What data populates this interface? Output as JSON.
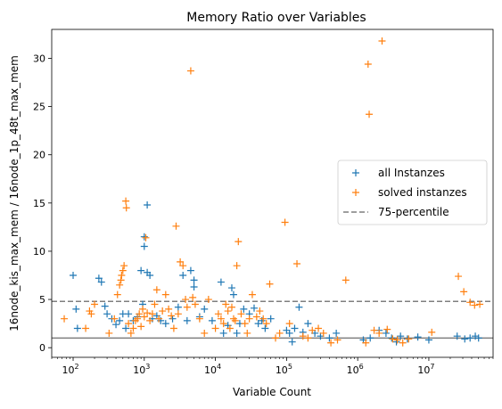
{
  "chart_data": {
    "type": "scatter",
    "title": "Memory Ratio over Variables",
    "xlabel": "Variable Count",
    "ylabel": "16node_kis_max_mem / 16node_1p_48t_max_mem",
    "x_scale": "log",
    "xlim": [
      50,
      80000000
    ],
    "ylim": [
      -1,
      33
    ],
    "x_ticks": [
      {
        "value": 100,
        "base": "10",
        "exp": "2"
      },
      {
        "value": 1000,
        "base": "10",
        "exp": "3"
      },
      {
        "value": 10000,
        "base": "10",
        "exp": "4"
      },
      {
        "value": 100000,
        "base": "10",
        "exp": "5"
      },
      {
        "value": 1000000,
        "base": "10",
        "exp": "6"
      },
      {
        "value": 10000000,
        "base": "10",
        "exp": "7"
      }
    ],
    "y_ticks": [
      0,
      5,
      10,
      15,
      20,
      25,
      30
    ],
    "legend": {
      "position": "center-right"
    },
    "reference_lines": [
      {
        "name": "75-percentile",
        "y": 4.8,
        "style": "dashed",
        "color": "#7f7f7f"
      },
      {
        "name": "",
        "y": 1.0,
        "style": "solid",
        "color": "#7f7f7f"
      }
    ],
    "series": [
      {
        "name": "all Instanzes",
        "marker": "+",
        "color": "#1f77b4",
        "points": [
          [
            100,
            7.5
          ],
          [
            110,
            4.0
          ],
          [
            115,
            2.0
          ],
          [
            230,
            7.2
          ],
          [
            250,
            6.8
          ],
          [
            280,
            4.3
          ],
          [
            300,
            3.5
          ],
          [
            350,
            3.0
          ],
          [
            400,
            2.4
          ],
          [
            450,
            2.8
          ],
          [
            500,
            3.5
          ],
          [
            550,
            2.0
          ],
          [
            600,
            3.5
          ],
          [
            700,
            2.8
          ],
          [
            800,
            3.2
          ],
          [
            900,
            8.0
          ],
          [
            950,
            4.5
          ],
          [
            1000,
            11.5
          ],
          [
            1000,
            10.5
          ],
          [
            1100,
            14.8
          ],
          [
            1100,
            7.8
          ],
          [
            1200,
            7.5
          ],
          [
            1300,
            3.0
          ],
          [
            1500,
            3.3
          ],
          [
            1700,
            2.8
          ],
          [
            2000,
            2.5
          ],
          [
            2500,
            3.0
          ],
          [
            3000,
            4.2
          ],
          [
            3500,
            7.5
          ],
          [
            4000,
            2.8
          ],
          [
            4500,
            8.0
          ],
          [
            5000,
            7.0
          ],
          [
            5000,
            6.3
          ],
          [
            6000,
            3.2
          ],
          [
            7000,
            4.0
          ],
          [
            9000,
            2.8
          ],
          [
            12000,
            6.8
          ],
          [
            13000,
            1.5
          ],
          [
            15000,
            2.3
          ],
          [
            17000,
            6.2
          ],
          [
            18000,
            5.5
          ],
          [
            20000,
            1.5
          ],
          [
            22000,
            2.5
          ],
          [
            25000,
            4.0
          ],
          [
            30000,
            3.5
          ],
          [
            35000,
            4.1
          ],
          [
            40000,
            2.5
          ],
          [
            45000,
            2.8
          ],
          [
            50000,
            2.0
          ],
          [
            60000,
            3.0
          ],
          [
            100000,
            1.8
          ],
          [
            110000,
            1.5
          ],
          [
            120000,
            0.6
          ],
          [
            130000,
            2.0
          ],
          [
            150000,
            4.2
          ],
          [
            170000,
            1.6
          ],
          [
            200000,
            2.5
          ],
          [
            250000,
            1.5
          ],
          [
            300000,
            1.2
          ],
          [
            400000,
            1.0
          ],
          [
            500000,
            1.5
          ],
          [
            1200000,
            0.8
          ],
          [
            1500000,
            1.0
          ],
          [
            2000000,
            1.8
          ],
          [
            2500000,
            1.5
          ],
          [
            3000000,
            1.0
          ],
          [
            3500000,
            0.6
          ],
          [
            4000000,
            1.2
          ],
          [
            5000000,
            0.9
          ],
          [
            7000000,
            1.1
          ],
          [
            10000000,
            0.8
          ],
          [
            25000000,
            1.2
          ],
          [
            32000000,
            0.9
          ],
          [
            38000000,
            1.0
          ],
          [
            45000000,
            1.2
          ],
          [
            50000000,
            1.0
          ]
        ]
      },
      {
        "name": "solved instanzes",
        "marker": "+",
        "color": "#ff7f0e",
        "points": [
          [
            75,
            3.0
          ],
          [
            150,
            2.0
          ],
          [
            170,
            3.8
          ],
          [
            180,
            3.5
          ],
          [
            200,
            4.5
          ],
          [
            320,
            1.5
          ],
          [
            380,
            3.0
          ],
          [
            420,
            5.5
          ],
          [
            450,
            6.5
          ],
          [
            470,
            7.0
          ],
          [
            480,
            7.5
          ],
          [
            500,
            8.0
          ],
          [
            520,
            8.5
          ],
          [
            550,
            15.2
          ],
          [
            560,
            14.5
          ],
          [
            600,
            2.5
          ],
          [
            650,
            1.5
          ],
          [
            700,
            2.0
          ],
          [
            750,
            2.8
          ],
          [
            800,
            3.0
          ],
          [
            850,
            3.5
          ],
          [
            900,
            2.2
          ],
          [
            950,
            4.0
          ],
          [
            1000,
            3.2
          ],
          [
            1050,
            11.4
          ],
          [
            1100,
            3.6
          ],
          [
            1200,
            2.8
          ],
          [
            1300,
            3.5
          ],
          [
            1400,
            4.5
          ],
          [
            1500,
            6.0
          ],
          [
            1600,
            3.0
          ],
          [
            1800,
            3.8
          ],
          [
            2000,
            5.5
          ],
          [
            2200,
            4.0
          ],
          [
            2400,
            3.3
          ],
          [
            2600,
            2.0
          ],
          [
            2800,
            12.6
          ],
          [
            3000,
            3.5
          ],
          [
            3200,
            8.9
          ],
          [
            3500,
            8.5
          ],
          [
            3800,
            5.0
          ],
          [
            4000,
            4.2
          ],
          [
            4500,
            28.7
          ],
          [
            4800,
            5.2
          ],
          [
            5200,
            4.5
          ],
          [
            6000,
            3.0
          ],
          [
            7000,
            1.5
          ],
          [
            8000,
            5.0
          ],
          [
            10000,
            2.0
          ],
          [
            11000,
            3.5
          ],
          [
            12000,
            3.0
          ],
          [
            13000,
            2.5
          ],
          [
            14000,
            4.5
          ],
          [
            15000,
            3.8
          ],
          [
            16000,
            2.0
          ],
          [
            17000,
            4.2
          ],
          [
            18000,
            3.0
          ],
          [
            19000,
            2.8
          ],
          [
            20000,
            8.5
          ],
          [
            21000,
            11.0
          ],
          [
            23000,
            3.5
          ],
          [
            26000,
            2.5
          ],
          [
            28000,
            1.5
          ],
          [
            30000,
            3.0
          ],
          [
            33000,
            5.5
          ],
          [
            38000,
            3.2
          ],
          [
            42000,
            3.8
          ],
          [
            47000,
            3.0
          ],
          [
            52000,
            2.5
          ],
          [
            58000,
            6.6
          ],
          [
            70000,
            1.0
          ],
          [
            80000,
            1.5
          ],
          [
            95000,
            13.0
          ],
          [
            110000,
            2.5
          ],
          [
            140000,
            8.7
          ],
          [
            170000,
            1.2
          ],
          [
            200000,
            1.0
          ],
          [
            230000,
            1.8
          ],
          [
            280000,
            2.0
          ],
          [
            330000,
            1.5
          ],
          [
            420000,
            0.5
          ],
          [
            520000,
            0.8
          ],
          [
            680000,
            7.0
          ],
          [
            1300000,
            0.5
          ],
          [
            1400000,
            29.4
          ],
          [
            1450000,
            24.2
          ],
          [
            1700000,
            1.8
          ],
          [
            2000000,
            1.5
          ],
          [
            2200000,
            31.8
          ],
          [
            2600000,
            1.9
          ],
          [
            3100000,
            0.9
          ],
          [
            3600000,
            0.8
          ],
          [
            4300000,
            0.5
          ],
          [
            5200000,
            0.9
          ],
          [
            11000000,
            1.6
          ],
          [
            26000000,
            7.4
          ],
          [
            31000000,
            5.8
          ],
          [
            38000000,
            4.7
          ],
          [
            44000000,
            4.4
          ],
          [
            52000000,
            4.5
          ]
        ]
      }
    ]
  }
}
